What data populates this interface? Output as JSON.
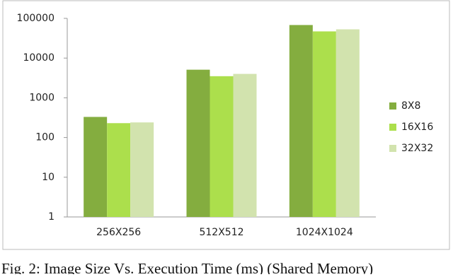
{
  "chart_data": {
    "type": "bar",
    "log_scale": true,
    "grid": false,
    "legend": "right",
    "caption": "Fig. 2: Image Size Vs. Execution Time (ms) (Shared Memory)",
    "categories": [
      "256X256",
      "512X512",
      "1024X1024"
    ],
    "series": [
      {
        "name": "8X8",
        "color": "#84ad3f",
        "values": [
          330,
          5100,
          68000
        ]
      },
      {
        "name": "16X16",
        "color": "#acdf4c",
        "values": [
          230,
          3500,
          47000
        ]
      },
      {
        "name": "32X32",
        "color": "#d2e3ae",
        "values": [
          240,
          4000,
          53000
        ]
      }
    ],
    "ylim": [
      1,
      100000
    ],
    "yticks": [
      1,
      10,
      100,
      1000,
      10000,
      100000
    ]
  }
}
